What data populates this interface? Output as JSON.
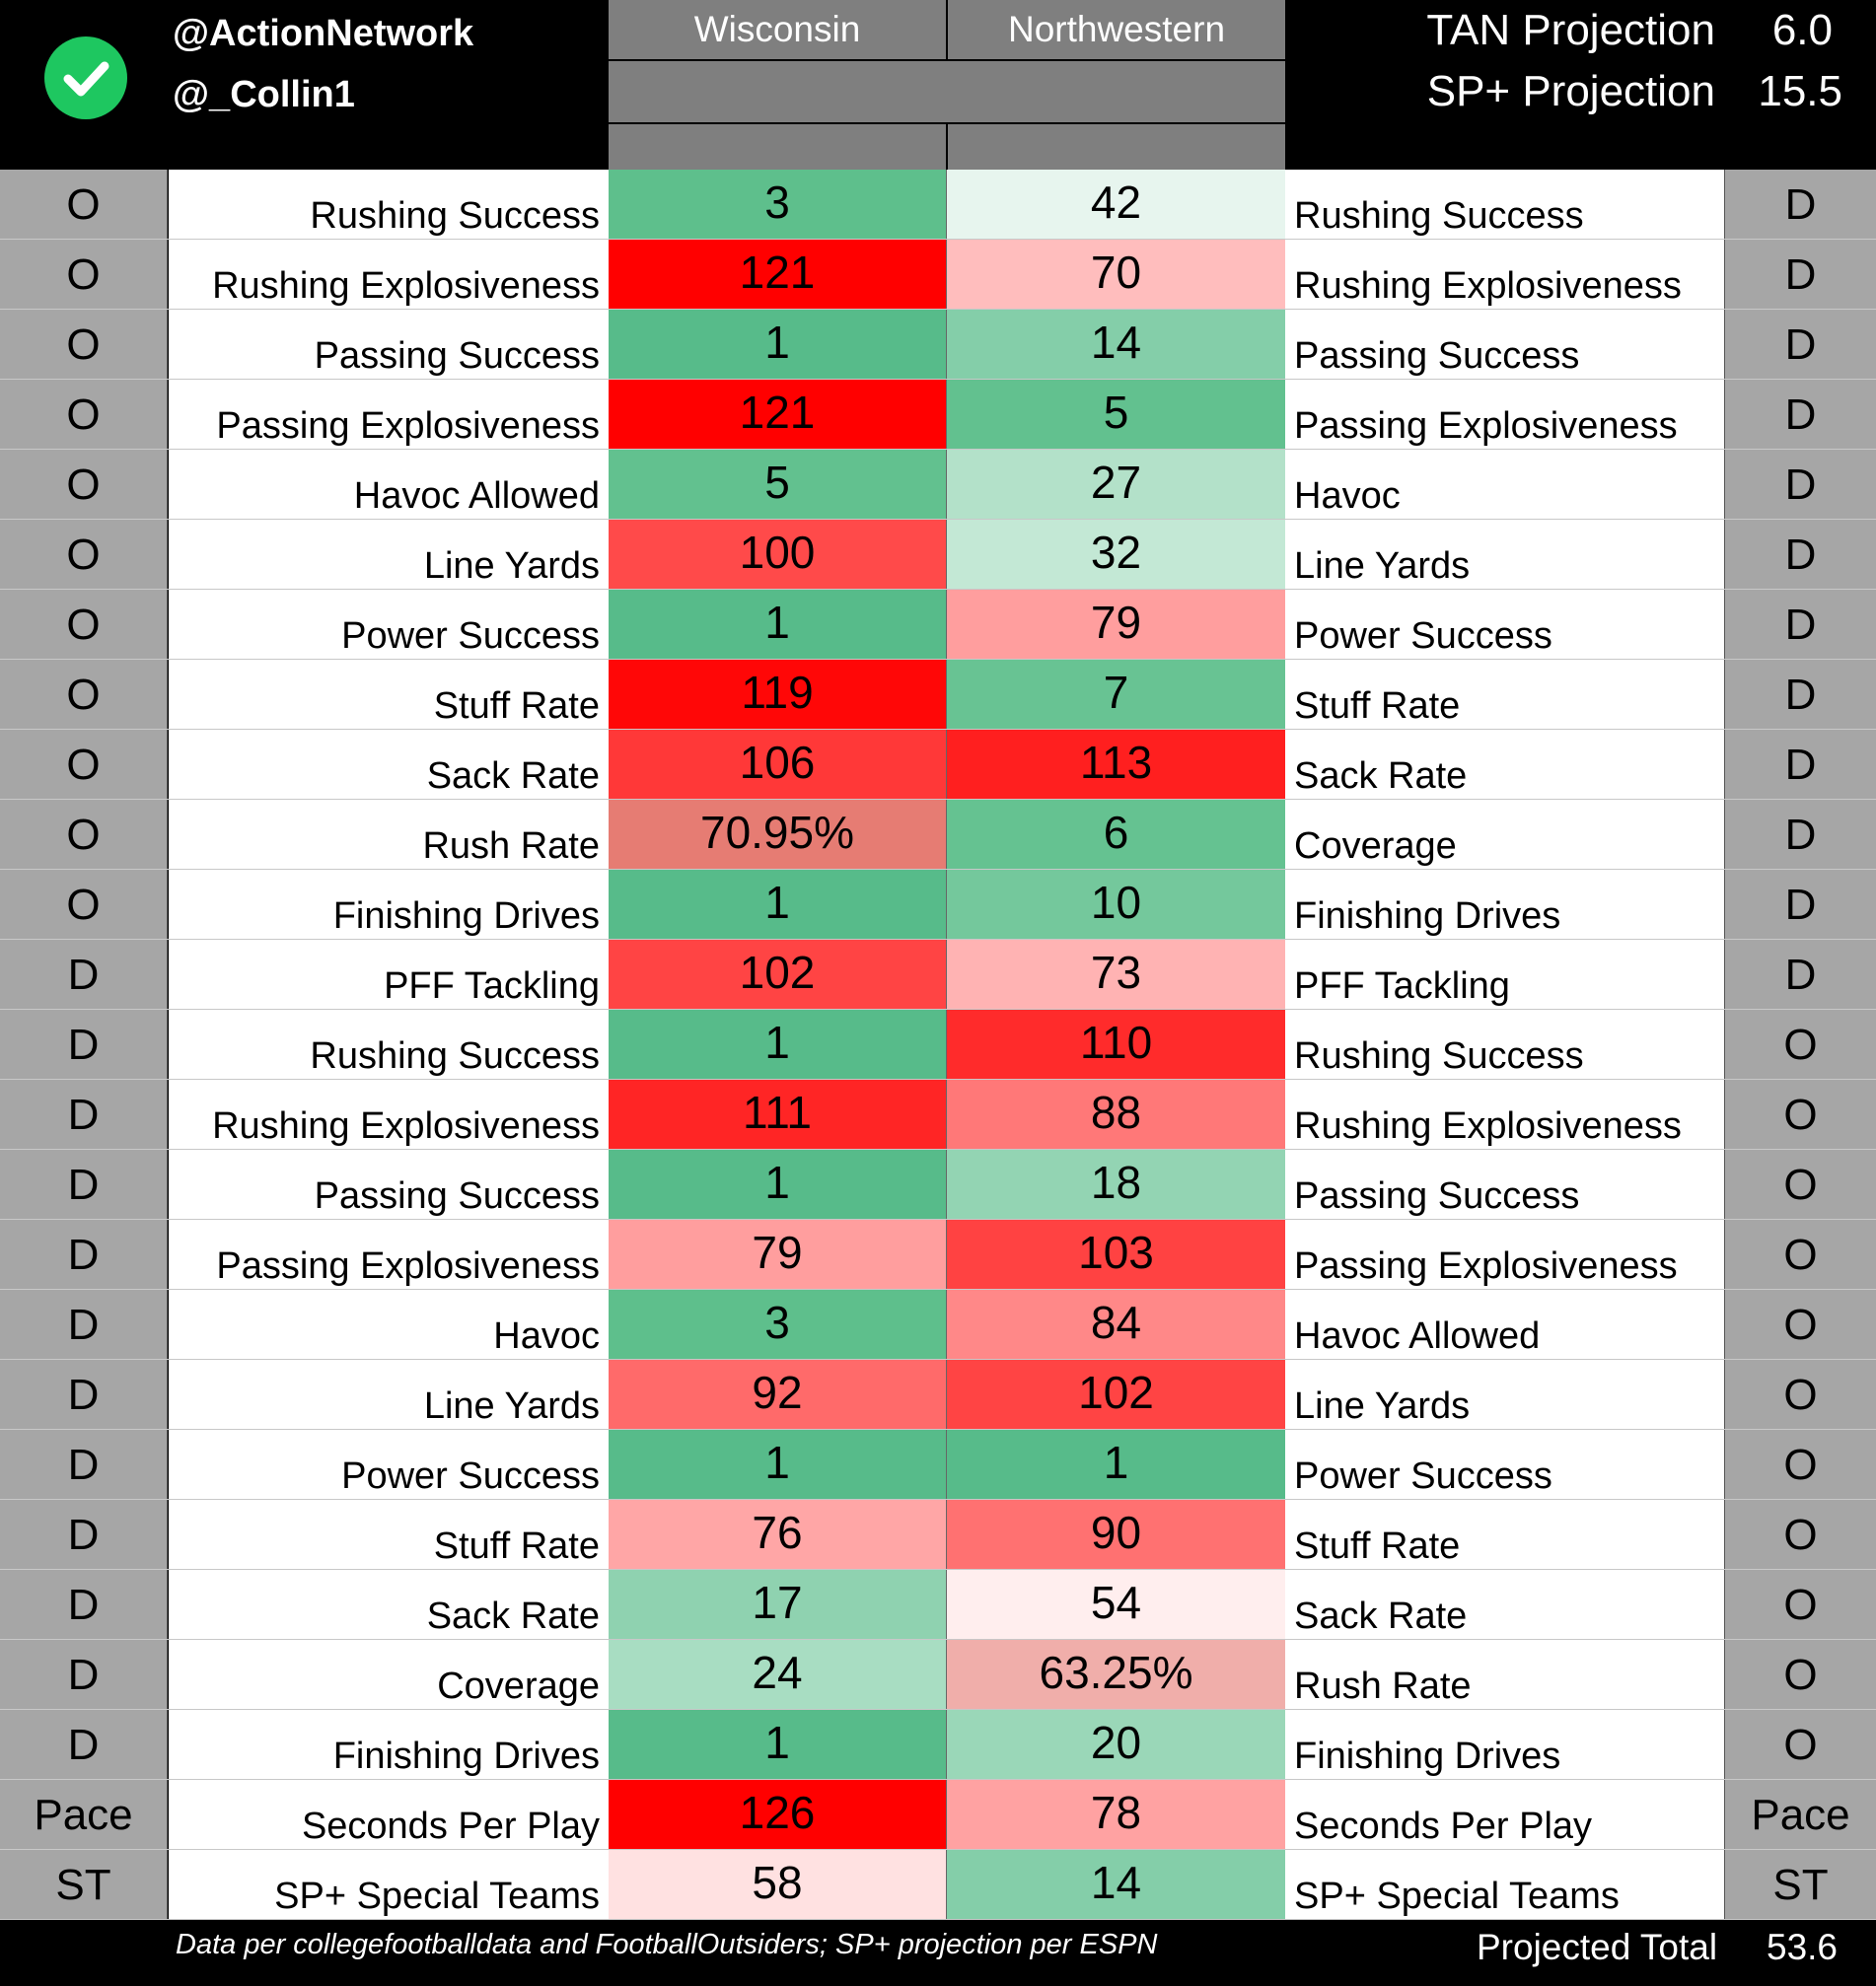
{
  "header": {
    "handles": [
      "@ActionNetwork",
      "@_Collin1"
    ],
    "check_icon": "check-circle-icon",
    "team_left": "Wisconsin",
    "team_right": "Northwestern",
    "projections": [
      {
        "label": "TAN Projection",
        "value": "6.0"
      },
      {
        "label": "SP+ Projection",
        "value": "15.5"
      }
    ]
  },
  "colors": {
    "header_gray": "#7f7f7f",
    "side_gray": "#a6a6a6",
    "check_green": "#1ec760"
  },
  "rows": [
    {
      "left_side": "O",
      "left_label": "Rushing Success",
      "wisc": "3",
      "wisc_color": "#5ebf8c",
      "nw": "42",
      "nw_color": "#e7f5ee",
      "right_label": "Rushing Success",
      "right_side": "D"
    },
    {
      "left_side": "O",
      "left_label": "Rushing Explosiveness",
      "wisc": "121",
      "wisc_color": "#ff0000",
      "nw": "70",
      "nw_color": "#ffbdbd",
      "right_label": "Rushing Explosiveness",
      "right_side": "D"
    },
    {
      "left_side": "O",
      "left_label": "Passing Success",
      "wisc": "1",
      "wisc_color": "#57bb8a",
      "nw": "14",
      "nw_color": "#84cea9",
      "right_label": "Passing Success",
      "right_side": "D"
    },
    {
      "left_side": "O",
      "left_label": "Passing Explosiveness",
      "wisc": "121",
      "wisc_color": "#ff0000",
      "nw": "5",
      "nw_color": "#62c18f",
      "right_label": "Passing Explosiveness",
      "right_side": "D"
    },
    {
      "left_side": "O",
      "left_label": "Havoc Allowed",
      "wisc": "5",
      "wisc_color": "#62c18f",
      "nw": "27",
      "nw_color": "#b3e1c9",
      "right_label": "Havoc",
      "right_side": "D"
    },
    {
      "left_side": "O",
      "left_label": "Line Yards",
      "wisc": "100",
      "wisc_color": "#ff4a4a",
      "nw": "32",
      "nw_color": "#c3e8d5",
      "right_label": "Line Yards",
      "right_side": "D"
    },
    {
      "left_side": "O",
      "left_label": "Power Success",
      "wisc": "1",
      "wisc_color": "#57bb8a",
      "nw": "79",
      "nw_color": "#ff9e9e",
      "right_label": "Power Success",
      "right_side": "D"
    },
    {
      "left_side": "O",
      "left_label": "Stuff Rate",
      "wisc": "119",
      "wisc_color": "#ff0707",
      "nw": "7",
      "nw_color": "#68c393",
      "right_label": "Stuff Rate",
      "right_side": "D"
    },
    {
      "left_side": "O",
      "left_label": "Sack Rate",
      "wisc": "106",
      "wisc_color": "#ff3838",
      "nw": "113",
      "nw_color": "#ff1f1f",
      "right_label": "Sack Rate",
      "right_side": "D"
    },
    {
      "left_side": "O",
      "left_label": "Rush Rate",
      "wisc": "70.95%",
      "wisc_color": "#e67c73",
      "nw": "6",
      "nw_color": "#65c291",
      "right_label": "Coverage",
      "right_side": "D"
    },
    {
      "left_side": "O",
      "left_label": "Finishing Drives",
      "wisc": "1",
      "wisc_color": "#57bb8a",
      "nw": "10",
      "nw_color": "#74c89c",
      "right_label": "Finishing Drives",
      "right_side": "D"
    },
    {
      "left_side": "D",
      "left_label": "PFF Tackling",
      "wisc": "102",
      "wisc_color": "#ff4444",
      "nw": "73",
      "nw_color": "#ffb3b3",
      "right_label": "PFF Tackling",
      "right_side": "D"
    },
    {
      "left_side": "D",
      "left_label": "Rushing Success",
      "wisc": "1",
      "wisc_color": "#57bb8a",
      "nw": "110",
      "nw_color": "#ff2b2b",
      "right_label": "Rushing Success",
      "right_side": "O"
    },
    {
      "left_side": "D",
      "left_label": "Rushing Explosiveness",
      "wisc": "111",
      "wisc_color": "#ff2525",
      "nw": "88",
      "nw_color": "#ff7878",
      "right_label": "Rushing Explosiveness",
      "right_side": "O"
    },
    {
      "left_side": "D",
      "left_label": "Passing Success",
      "wisc": "1",
      "wisc_color": "#57bb8a",
      "nw": "18",
      "nw_color": "#93d4b3",
      "right_label": "Passing Success",
      "right_side": "O"
    },
    {
      "left_side": "D",
      "left_label": "Passing Explosiveness",
      "wisc": "79",
      "wisc_color": "#ff9e9e",
      "nw": "103",
      "nw_color": "#ff4242",
      "right_label": "Passing Explosiveness",
      "right_side": "O"
    },
    {
      "left_side": "D",
      "left_label": "Havoc",
      "wisc": "3",
      "wisc_color": "#5ebf8c",
      "nw": "84",
      "nw_color": "#ff8888",
      "right_label": "Havoc Allowed",
      "right_side": "O"
    },
    {
      "left_side": "D",
      "left_label": "Line Yards",
      "wisc": "92",
      "wisc_color": "#ff6a6a",
      "nw": "102",
      "nw_color": "#ff4444",
      "right_label": "Line Yards",
      "right_side": "O"
    },
    {
      "left_side": "D",
      "left_label": "Power Success",
      "wisc": "1",
      "wisc_color": "#57bb8a",
      "nw": "1",
      "nw_color": "#57bb8a",
      "right_label": "Power Success",
      "right_side": "O"
    },
    {
      "left_side": "D",
      "left_label": "Stuff Rate",
      "wisc": "76",
      "wisc_color": "#ffa6a6",
      "nw": "90",
      "nw_color": "#ff7171",
      "right_label": "Stuff Rate",
      "right_side": "O"
    },
    {
      "left_side": "D",
      "left_label": "Sack Rate",
      "wisc": "17",
      "wisc_color": "#8fd2b0",
      "nw": "54",
      "nw_color": "#ffeeee",
      "right_label": "Sack Rate",
      "right_side": "O"
    },
    {
      "left_side": "D",
      "left_label": "Coverage",
      "wisc": "24",
      "wisc_color": "#a8ddc2",
      "nw": "63.25%",
      "nw_color": "#f0aeaa",
      "right_label": "Rush Rate",
      "right_side": "O"
    },
    {
      "left_side": "D",
      "left_label": "Finishing Drives",
      "wisc": "1",
      "wisc_color": "#57bb8a",
      "nw": "20",
      "nw_color": "#9ad7b8",
      "right_label": "Finishing Drives",
      "right_side": "O"
    },
    {
      "left_side": "Pace",
      "left_label": "Seconds Per Play",
      "wisc": "126",
      "wisc_color": "#ff0000",
      "nw": "78",
      "nw_color": "#ffa2a2",
      "right_label": "Seconds Per Play",
      "right_side": "Pace"
    },
    {
      "left_side": "ST",
      "left_label": "SP+ Special Teams",
      "wisc": "58",
      "wisc_color": "#ffe1e1",
      "nw": "14",
      "nw_color": "#84cea9",
      "right_label": "SP+ Special Teams",
      "right_side": "ST"
    }
  ],
  "footer": {
    "note": "Data per collegefootballdata and FootballOutsiders; SP+ projection per ESPN",
    "total_label": "Projected Total",
    "total_value": "53.6"
  }
}
